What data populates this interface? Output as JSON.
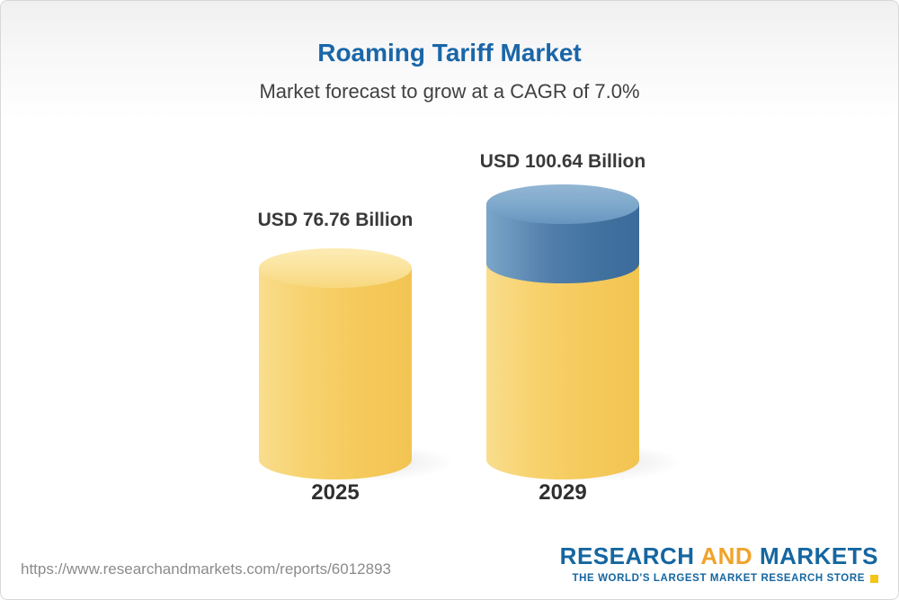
{
  "header": {
    "title": "Roaming Tariff Market",
    "subtitle": "Market forecast to grow at a CAGR of 7.0%"
  },
  "chart_data": {
    "type": "bar",
    "title": "Roaming Tariff Market",
    "subtitle": "Market forecast to grow at a CAGR of 7.0%",
    "categories": [
      "2025",
      "2029"
    ],
    "values": [
      76.76,
      100.64
    ],
    "value_labels": [
      "USD 76.76 Billion",
      "USD 100.64 Billion"
    ],
    "unit": "USD Billion",
    "cagr": "7.0%",
    "legend_position": "none",
    "grid": false,
    "colors": {
      "bar_base": "#f5ca5c",
      "bar_growth_segment": "#4a7fae",
      "title": "#1a66a8",
      "label_text": "#393939"
    }
  },
  "footer": {
    "url": "https://www.researchandmarkets.com/reports/6012893",
    "logo": {
      "part1": "RESEARCH",
      "part2": "AND",
      "part3": "MARKETS",
      "tagline": "THE WORLD'S LARGEST MARKET RESEARCH STORE"
    }
  }
}
